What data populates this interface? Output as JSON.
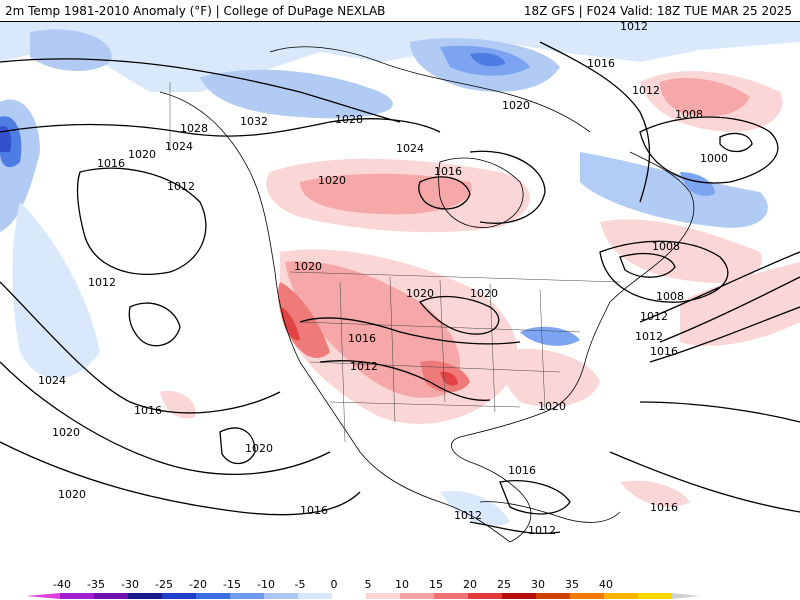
{
  "header": {
    "title": "2m Temp 1981-2010 Anomaly (°F) | College of DuPage NEXLAB",
    "valid": "18Z GFS | F024 Valid: 18Z TUE MAR 25 2025"
  },
  "colorbar": {
    "ticks": [
      "-40",
      "-35",
      "-30",
      "-25",
      "-20",
      "-15",
      "-10",
      "-5",
      "0",
      "5",
      "10",
      "15",
      "20",
      "25",
      "30",
      "35",
      "40"
    ],
    "colors": [
      "#e040e0",
      "#a020d0",
      "#7010b0",
      "#1a1a8c",
      "#1f3fc8",
      "#3a6ee0",
      "#6f9bef",
      "#a9c6f5",
      "#d6e6fb",
      "#ffffff",
      "#fbd4d4",
      "#f6a3a3",
      "#ef7373",
      "#e03a3a",
      "#b80d0d",
      "#d04000",
      "#f07a00",
      "#ffb400",
      "#ffd800",
      "#d0d0d0"
    ]
  },
  "map": {
    "isobar_labels": [
      {
        "text": "1012"
      },
      {
        "text": "1016"
      },
      {
        "text": "1020"
      },
      {
        "text": "1028"
      },
      {
        "text": "1032"
      },
      {
        "text": "1028"
      },
      {
        "text": "1024"
      },
      {
        "text": "1020"
      },
      {
        "text": "1024"
      },
      {
        "text": "1016"
      },
      {
        "text": "1012"
      },
      {
        "text": "1008"
      },
      {
        "text": "1000"
      },
      {
        "text": "1020"
      },
      {
        "text": "1016"
      },
      {
        "text": "1012"
      },
      {
        "text": "1020"
      },
      {
        "text": "1020"
      },
      {
        "text": "1020"
      },
      {
        "text": "1008"
      },
      {
        "text": "1012"
      },
      {
        "text": "1008"
      },
      {
        "text": "1012"
      },
      {
        "text": "1016"
      },
      {
        "text": "1016"
      },
      {
        "text": "1012"
      },
      {
        "text": "1020"
      },
      {
        "text": "1024"
      },
      {
        "text": "1016"
      },
      {
        "text": "1020"
      },
      {
        "text": "1020"
      },
      {
        "text": "1016"
      },
      {
        "text": "1016"
      },
      {
        "text": "1012"
      },
      {
        "text": "1012"
      },
      {
        "text": "1016"
      },
      {
        "text": "1020"
      },
      {
        "text": "1012"
      }
    ]
  }
}
